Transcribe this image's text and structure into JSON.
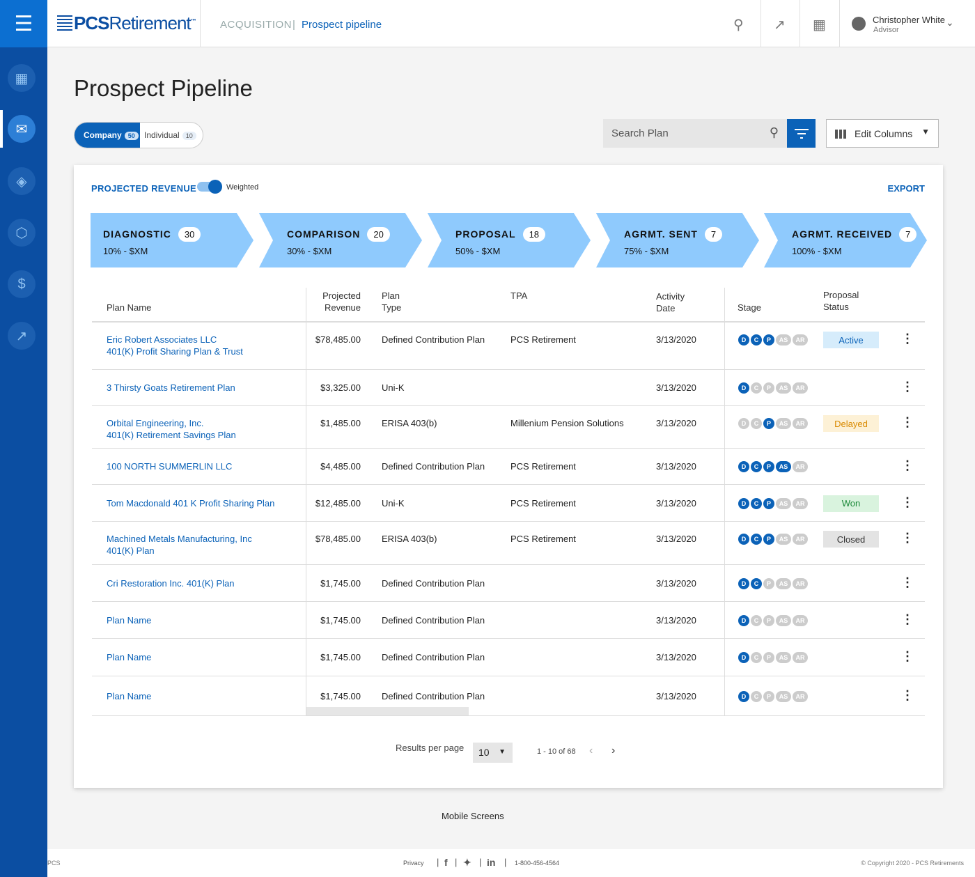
{
  "header": {
    "logo_bold": "PCS",
    "logo_light": "Retirement",
    "logo_tm": "™",
    "breadcrumb_section": "ACQUISITION",
    "breadcrumb_divider": "|",
    "breadcrumb_page": "Prospect pipeline",
    "user_name": "Christopher White",
    "user_role": "Advisor"
  },
  "page": {
    "title": "Prospect Pipeline",
    "segment": {
      "company_label": "Company",
      "company_count": "50",
      "individual_label": "Individual",
      "individual_count": "10"
    },
    "search_placeholder": "Search Plan",
    "edit_columns_label": "Edit Columns"
  },
  "card": {
    "projected_revenue": "PROJECTED REVENUE",
    "weighted_label": "Weighted",
    "export_label": "EXPORT",
    "stages": [
      {
        "name": "DIAGNOSTIC",
        "count": "30",
        "pct": "10% - $XM"
      },
      {
        "name": "COMPARISON",
        "count": "20",
        "pct": "30% - $XM"
      },
      {
        "name": "PROPOSAL",
        "count": "18",
        "pct": "50% - $XM"
      },
      {
        "name": "AGRMT. SENT",
        "count": "7",
        "pct": "75% - $XM"
      },
      {
        "name": "AGRMT. RECEIVED",
        "count": "7",
        "pct": "100% - $XM"
      }
    ],
    "columns": {
      "plan_name": "Plan Name",
      "projected_revenue_1": "Projected",
      "projected_revenue_2": "Revenue",
      "plan_type_1": "Plan",
      "plan_type_2": "Type",
      "tpa": "TPA",
      "activity_date_1": "Activity",
      "activity_date_2": "Date",
      "stage": "Stage",
      "proposal_status_1": "Proposal",
      "proposal_status_2": "Status"
    },
    "rows": [
      {
        "name1": "Eric Robert Associates LLC",
        "name2": "401(K) Profit Sharing Plan & Trust",
        "revenue": "$78,485.00",
        "type": "Defined Contribution Plan",
        "tpa": "PCS Retirement",
        "date": "3/13/2020",
        "stages_on": 3,
        "status": "Active"
      },
      {
        "name1": "3 Thirsty Goats Retirement Plan",
        "name2": "",
        "revenue": "$3,325.00",
        "type": "Uni-K",
        "tpa": "",
        "date": "3/13/2020",
        "stages_on": 1,
        "status": ""
      },
      {
        "name1": "Orbital Engineering, Inc.",
        "name2": "401(K) Retirement Savings Plan",
        "revenue": "$1,485.00",
        "type": "ERISA 403(b)",
        "tpa": "Millenium Pension Solutions",
        "date": "3/13/2020",
        "stages_on": -3,
        "status": "Delayed"
      },
      {
        "name1": "100 NORTH SUMMERLIN LLC",
        "name2": "",
        "revenue": "$4,485.00",
        "type": "Defined Contribution Plan",
        "tpa": "PCS Retirement",
        "date": "3/13/2020",
        "stages_on": 4,
        "status": ""
      },
      {
        "name1": "Tom Macdonald 401 K Profit Sharing Plan",
        "name2": "",
        "revenue": "$12,485.00",
        "type": "Uni-K",
        "tpa": "PCS Retirement",
        "date": "3/13/2020",
        "stages_on": 3,
        "status": "Won"
      },
      {
        "name1": "Machined Metals Manufacturing, Inc",
        "name2": "401(K) Plan",
        "revenue": "$78,485.00",
        "type": "ERISA 403(b)",
        "tpa": "PCS Retirement",
        "date": "3/13/2020",
        "stages_on": 3,
        "status": "Closed"
      },
      {
        "name1": "Cri Restoration Inc. 401(K) Plan",
        "name2": "",
        "revenue": "$1,745.00",
        "type": "Defined Contribution Plan",
        "tpa": "",
        "date": "3/13/2020",
        "stages_on": 2,
        "status": ""
      },
      {
        "name1": "Plan Name",
        "name2": "",
        "revenue": "$1,745.00",
        "type": "Defined Contribution Plan",
        "tpa": "",
        "date": "3/13/2020",
        "stages_on": 1,
        "status": ""
      },
      {
        "name1": "Plan Name",
        "name2": "",
        "revenue": "$1,745.00",
        "type": "Defined Contribution Plan",
        "tpa": "",
        "date": "3/13/2020",
        "stages_on": 1,
        "status": ""
      },
      {
        "name1": "Plan Name",
        "name2": "",
        "revenue": "$1,745.00",
        "type": "Defined Contribution Plan",
        "tpa": "",
        "date": "3/13/2020",
        "stages_on": 1,
        "status": ""
      }
    ],
    "stage_dots": [
      "D",
      "C",
      "P",
      "AS",
      "AR"
    ],
    "status_colors": {
      "Active": {
        "bg": "#d6ecfb",
        "fg": "#0b62b8"
      },
      "Delayed": {
        "bg": "#fdf1d6",
        "fg": "#d98a00"
      },
      "Won": {
        "bg": "#d9f3de",
        "fg": "#1d8a3a"
      },
      "Closed": {
        "bg": "#e3e3e3",
        "fg": "#333333"
      }
    },
    "pager": {
      "results_label": "Results per page",
      "per_page": "10",
      "range": "1 - 10 of 68"
    }
  },
  "mobile_link": "Mobile Screens",
  "footer": {
    "left": "PCS",
    "privacy": "Privacy",
    "phone": "1-800-456-4564",
    "copyright": "© Copyright 2020 - PCS Retirements"
  }
}
